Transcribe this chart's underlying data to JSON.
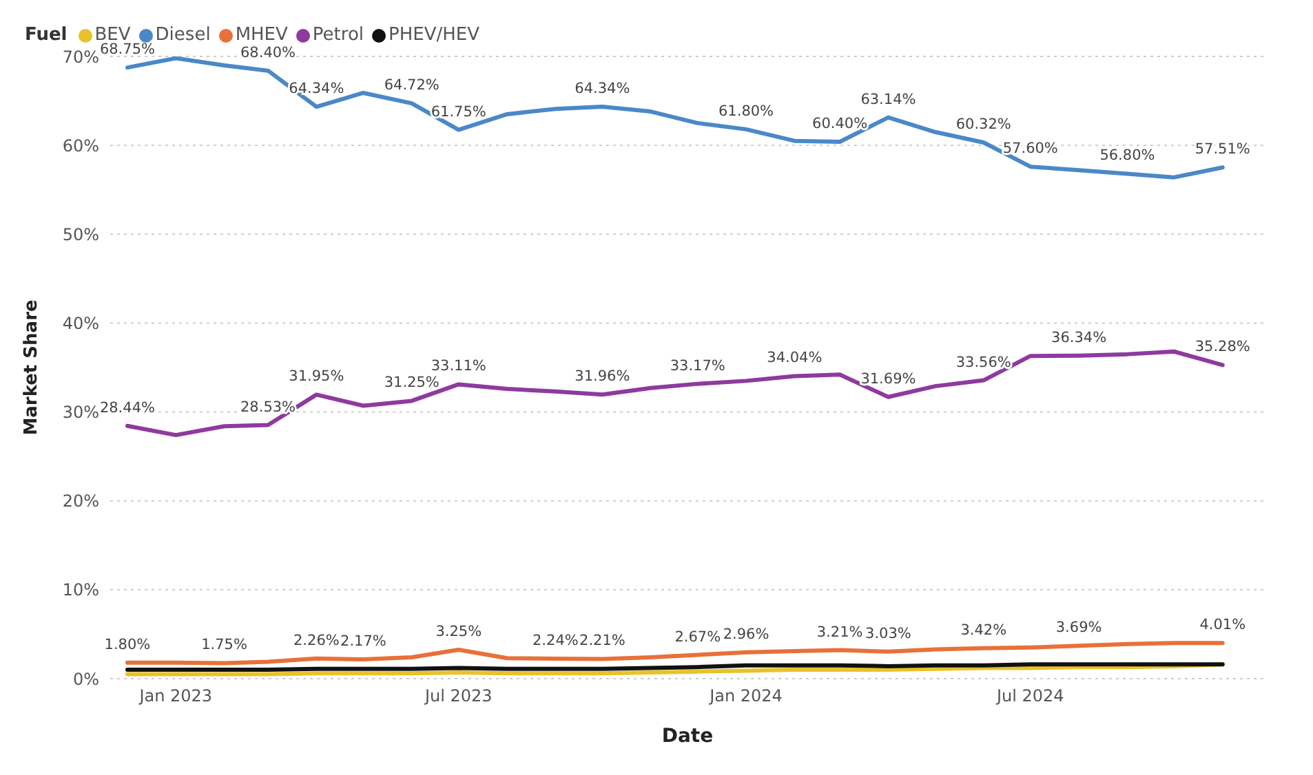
{
  "chart_data": {
    "type": "line",
    "xlabel": "Date",
    "ylabel": "Market Share",
    "legend_title": "Fuel",
    "legend": "top left",
    "grid": "y",
    "marker": "none",
    "line_style": "solid",
    "x": [
      "2022-12",
      "2023-01",
      "2023-02",
      "2023-03",
      "2023-04",
      "2023-05",
      "2023-06",
      "2023-07",
      "2023-08",
      "2023-09",
      "2023-10",
      "2023-11",
      "2023-12",
      "2024-01",
      "2024-02",
      "2024-03",
      "2024-04",
      "2024-05",
      "2024-06",
      "2024-07",
      "2024-08",
      "2024-09",
      "2024-10",
      "2024-11"
    ],
    "xlim": [
      "2022-11-20",
      "2024-11-28"
    ],
    "xticks": [
      {
        "value": "2023-01",
        "label": "Jan 2023"
      },
      {
        "value": "2023-07",
        "label": "Jul 2023"
      },
      {
        "value": "2024-01",
        "label": "Jan 2024"
      },
      {
        "value": "2024-07",
        "label": "Jul 2024"
      }
    ],
    "ylim": [
      0,
      70
    ],
    "yticks": [
      {
        "value": 0,
        "label": "0%"
      },
      {
        "value": 10,
        "label": "10%"
      },
      {
        "value": 20,
        "label": "20%"
      },
      {
        "value": 30,
        "label": "30%"
      },
      {
        "value": 40,
        "label": "40%"
      },
      {
        "value": 50,
        "label": "50%"
      },
      {
        "value": 60,
        "label": "60%"
      },
      {
        "value": 70,
        "label": "70%"
      }
    ],
    "series": [
      {
        "name": "BEV",
        "color": "#e8c22a",
        "values": [
          0.5,
          0.5,
          0.5,
          0.5,
          0.6,
          0.6,
          0.6,
          0.7,
          0.6,
          0.6,
          0.6,
          0.7,
          0.8,
          0.9,
          1.0,
          1.0,
          1.0,
          1.1,
          1.2,
          1.2,
          1.3,
          1.3,
          1.4,
          1.6
        ]
      },
      {
        "name": "Diesel",
        "color": "#4a88c8",
        "values": [
          68.75,
          69.8,
          69.0,
          68.4,
          64.34,
          65.9,
          64.72,
          61.75,
          63.5,
          64.1,
          64.34,
          63.8,
          62.5,
          61.8,
          60.5,
          60.4,
          63.14,
          61.5,
          60.32,
          57.6,
          57.2,
          56.8,
          56.4,
          57.51
        ],
        "value_labels": [
          "68.75%",
          null,
          null,
          "68.40%",
          "64.34%",
          null,
          "64.72%",
          "61.75%",
          null,
          null,
          "64.34%",
          null,
          null,
          "61.80%",
          null,
          "60.40%",
          "63.14%",
          null,
          "60.32%",
          "57.60%",
          null,
          "56.80%",
          null,
          "57.51%"
        ]
      },
      {
        "name": "MHEV",
        "color": "#e8703a",
        "values": [
          1.8,
          1.8,
          1.75,
          1.9,
          2.26,
          2.17,
          2.4,
          3.25,
          2.3,
          2.24,
          2.21,
          2.4,
          2.67,
          2.96,
          3.1,
          3.21,
          3.03,
          3.3,
          3.42,
          3.5,
          3.69,
          3.9,
          4.0,
          4.01
        ],
        "value_labels": [
          "1.80%",
          null,
          "1.75%",
          null,
          "2.26%",
          "2.17%",
          null,
          "3.25%",
          null,
          "2.24%",
          "2.21%",
          null,
          "2.67%",
          "2.96%",
          null,
          "3.21%",
          "3.03%",
          null,
          "3.42%",
          null,
          "3.69%",
          null,
          null,
          "4.01%"
        ]
      },
      {
        "name": "Petrol",
        "color": "#8e3a9e",
        "values": [
          28.44,
          27.4,
          28.4,
          28.53,
          31.95,
          30.7,
          31.25,
          33.11,
          32.6,
          32.3,
          31.96,
          32.7,
          33.17,
          33.5,
          34.04,
          34.2,
          31.69,
          32.9,
          33.56,
          36.3,
          36.34,
          36.5,
          36.8,
          35.28
        ],
        "value_labels": [
          "28.44%",
          null,
          null,
          "28.53%",
          "31.95%",
          null,
          "31.25%",
          "33.11%",
          null,
          null,
          "31.96%",
          null,
          "33.17%",
          null,
          "34.04%",
          null,
          "31.69%",
          null,
          "33.56%",
          null,
          "36.34%",
          null,
          null,
          "35.28%"
        ]
      },
      {
        "name": "PHEV/HEV",
        "color": "#111111",
        "values": [
          1.0,
          1.0,
          1.0,
          1.0,
          1.1,
          1.1,
          1.1,
          1.2,
          1.1,
          1.1,
          1.1,
          1.2,
          1.3,
          1.5,
          1.5,
          1.5,
          1.4,
          1.5,
          1.5,
          1.6,
          1.6,
          1.6,
          1.6,
          1.6
        ]
      }
    ]
  }
}
